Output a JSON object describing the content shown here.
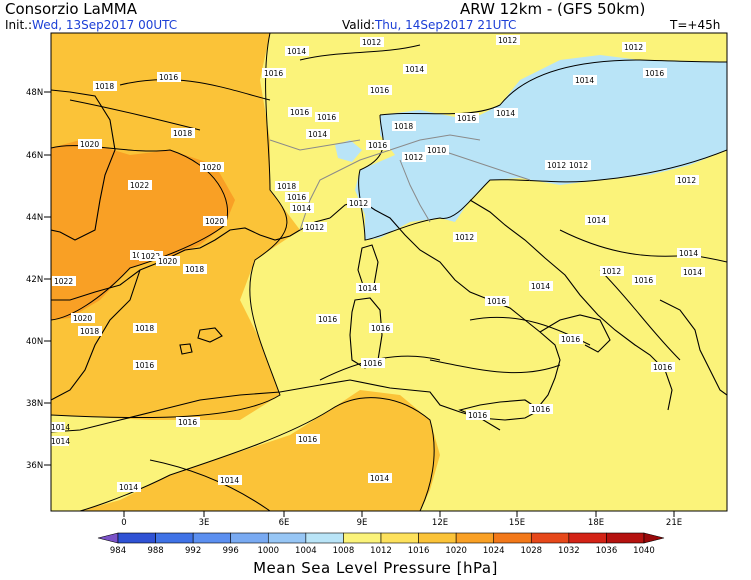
{
  "header": {
    "org": "Consorzio LaMMA",
    "model": "ARW 12km - (GFS 50km)",
    "init_label": "Init.:",
    "init_value": "Wed, 13Sep2017 00UTC",
    "valid_label": "Valid:",
    "valid_value": "Thu, 14Sep2017 21UTC",
    "lead": "T=+45h"
  },
  "map": {
    "lat_ticks": [
      "48N",
      "46N",
      "44N",
      "42N",
      "40N",
      "38N",
      "36N"
    ],
    "lon_ticks": [
      "0",
      "3E",
      "6E",
      "9E",
      "12E",
      "15E",
      "18E",
      "21E"
    ],
    "contour_labels": [
      "1012",
      "1012",
      "1014",
      "1012",
      "1016",
      "1016",
      "1018",
      "1016",
      "1014",
      "1014",
      "1016",
      "1016",
      "1018",
      "1016",
      "1014",
      "1016",
      "1018",
      "1014",
      "1020",
      "1016",
      "1012",
      "1010",
      "1012",
      "1012",
      "1012",
      "1020",
      "1022",
      "1018",
      "1016",
      "1014",
      "1012",
      "1012",
      "1020",
      "1020",
      "1022",
      "1020",
      "1018",
      "1012",
      "1014",
      "1012",
      "1014",
      "1016",
      "1014",
      "1014",
      "1022",
      "1020",
      "1018",
      "1018",
      "1016",
      "1016",
      "1014",
      "1016",
      "1016",
      "1016",
      "1016",
      "1016",
      "1016",
      "1016",
      "1014",
      "1014",
      "1016",
      "1016",
      "1014",
      "1014",
      "1014"
    ]
  },
  "colorbar": {
    "levels": [
      "984",
      "988",
      "992",
      "996",
      "1000",
      "1004",
      "1008",
      "1012",
      "1016",
      "1020",
      "1024",
      "1028",
      "1032",
      "1036",
      "1040"
    ],
    "colors": [
      "#7a52c7",
      "#2f52d4",
      "#3f72e6",
      "#5b8ff0",
      "#79aaf2",
      "#97c6f5",
      "#b9e4f7",
      "#fbf37a",
      "#fde15c",
      "#fbc338",
      "#f9a025",
      "#f27819",
      "#e6481a",
      "#d32316",
      "#b5120f",
      "#98090a"
    ],
    "title": "Mean Sea Level Pressure [hPa]"
  }
}
